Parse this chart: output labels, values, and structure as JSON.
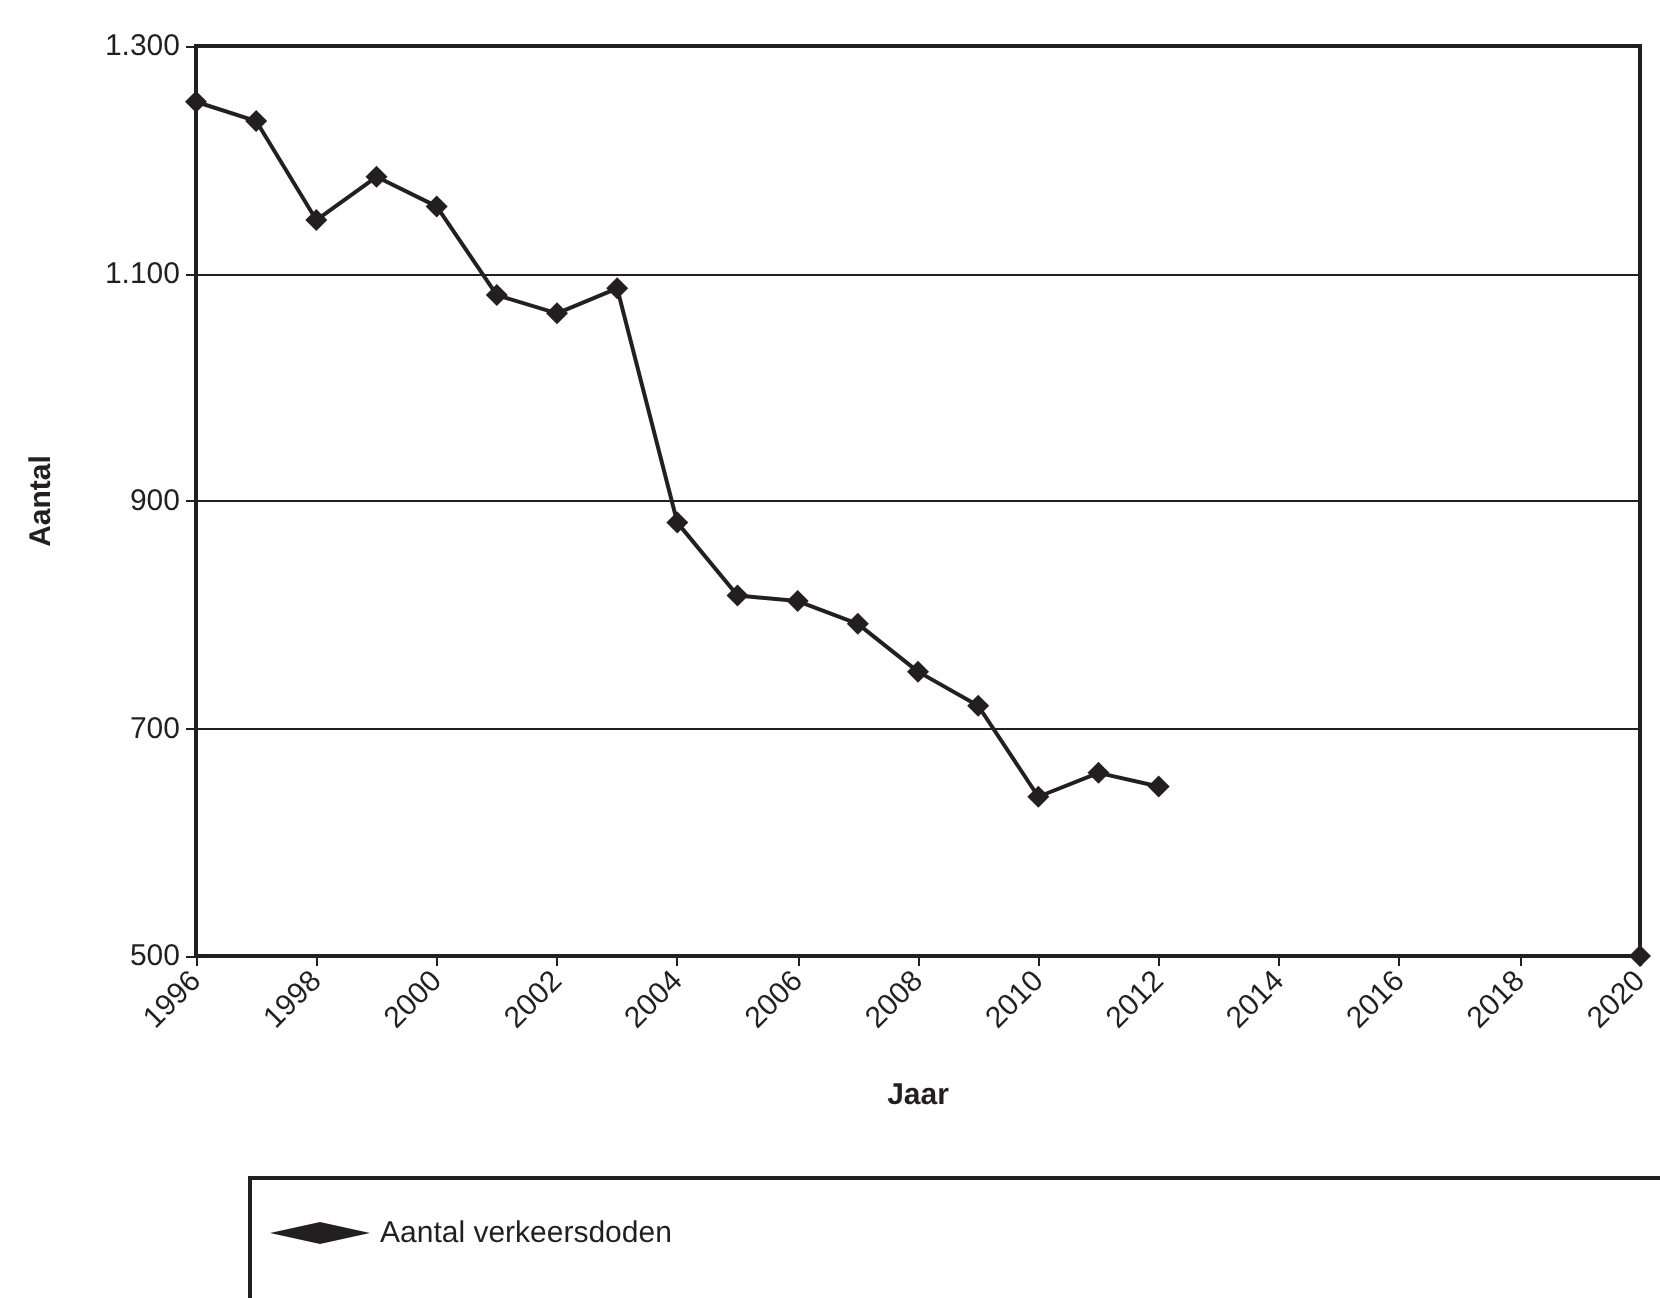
{
  "chart_data": {
    "type": "line",
    "xlabel": "Jaar",
    "ylabel": "Aantal",
    "x": [
      1996,
      1997,
      1998,
      1999,
      2000,
      2001,
      2002,
      2003,
      2004,
      2005,
      2006,
      2007,
      2008,
      2009,
      2010,
      2011,
      2012,
      2013,
      2014,
      2015,
      2016,
      2017,
      2018,
      2019,
      2020
    ],
    "series": [
      {
        "name": "Aantal verkeersdoden",
        "color": "#231f20",
        "values": [
          1251,
          1234,
          1147,
          1185,
          1159,
          1081,
          1065,
          1087,
          881,
          817,
          812,
          792,
          750,
          720,
          640,
          661,
          649,
          null,
          null,
          null,
          null,
          null,
          null,
          null,
          500
        ]
      }
    ],
    "xlim": [
      1996,
      2020
    ],
    "xticks": [
      1996,
      1998,
      2000,
      2002,
      2004,
      2006,
      2008,
      2010,
      2012,
      2014,
      2016,
      2018,
      2020
    ],
    "ylim": [
      500,
      1300
    ],
    "yticks": [
      500,
      700,
      900,
      {
        "value": 1100,
        "label": "1.100"
      },
      {
        "value": 1300,
        "label": "1.300"
      }
    ],
    "grid": "y",
    "legend": "bottom",
    "marker": "diamond",
    "line_style": "solid"
  }
}
